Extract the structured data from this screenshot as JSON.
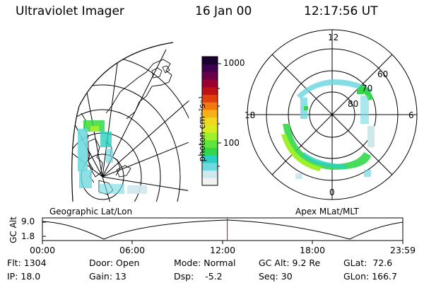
{
  "header": {
    "instrument": "Ultraviolet Imager",
    "date": "16 Jan 00",
    "time": "12:17:56 UT"
  },
  "colorbar": {
    "unit_label": "photon cm⁻²s⁻¹",
    "ticks": [
      "1000",
      "100"
    ],
    "colors": [
      "#f2f2f2",
      "#cfe8ec",
      "#70d8e0",
      "#2bd0c0",
      "#33d84a",
      "#5ee43c",
      "#9ef02a",
      "#d8ea20",
      "#f0d820",
      "#f8b018",
      "#f07a10",
      "#e04010",
      "#c01018",
      "#9a0030",
      "#6a0048",
      "#400050",
      "#1a0030"
    ]
  },
  "left_panel": {
    "caption": "Geographic Lat/Lon"
  },
  "right_panel": {
    "caption": "Apex MLat/MLT",
    "mlt_labels": {
      "top": "12",
      "left": "18",
      "right": "6",
      "bottom": "0"
    },
    "lat_labels": [
      "60",
      "70",
      "80"
    ]
  },
  "altitude_strip": {
    "axis_label": "GC Alt",
    "y_ticks": [
      "9.0",
      "1.8"
    ],
    "x_ticks": [
      "00:00",
      "06:00",
      "12:00",
      "18:00",
      "23:59"
    ],
    "current_time_fraction": 0.513,
    "marker_color": "#e00000"
  },
  "status": {
    "flt_label": "Flt:",
    "flt_value": "1304",
    "ip_label": "IP:",
    "ip_value": "18.0",
    "door_label": "Door:",
    "door_value": "Open",
    "gain_label": "Gain:",
    "gain_value": "13",
    "mode_label": "Mode:",
    "mode_value": "Normal",
    "dsp_label": "Dsp:",
    "dsp_value": "-5.2",
    "gcalt_label": "GC Alt:",
    "gcalt_value": "9.2 Re",
    "seq_label": "Seq:",
    "seq_value": "30",
    "glat_label": "GLat:",
    "glat_value": "72.6",
    "glon_label": "GLon:",
    "glon_value": "166.7"
  }
}
